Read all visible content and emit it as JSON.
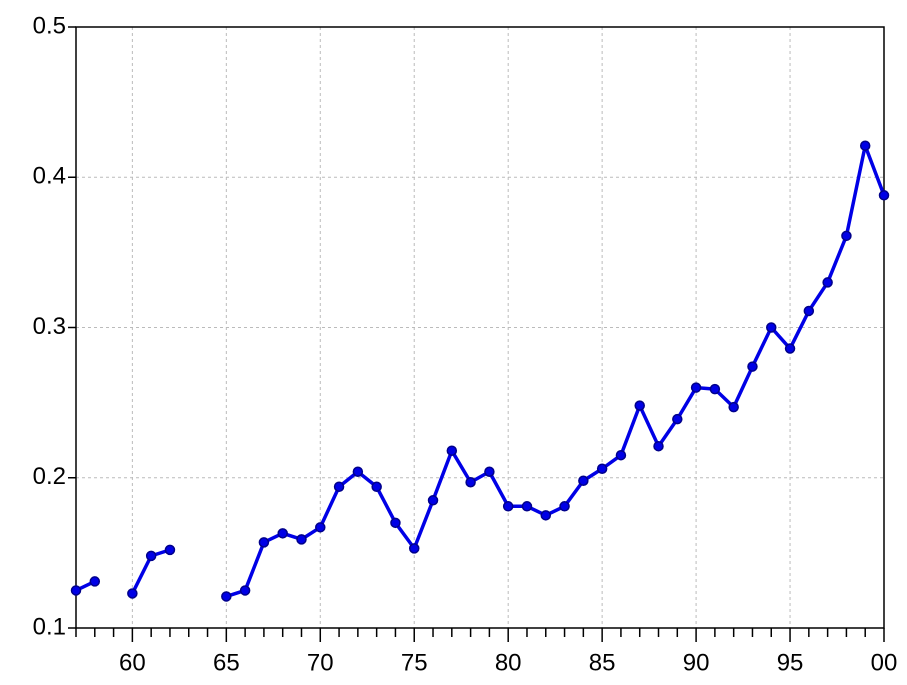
{
  "chart_data": {
    "type": "line",
    "categories": [
      null,
      null,
      null,
      "60",
      null,
      null,
      null,
      null,
      "65",
      null,
      null,
      null,
      null,
      "70",
      null,
      null,
      null,
      null,
      "75",
      null,
      null,
      null,
      null,
      "80",
      null,
      null,
      null,
      null,
      "85",
      null,
      null,
      null,
      null,
      "90",
      null,
      null,
      null,
      null,
      "95",
      null,
      null,
      null,
      null,
      "00"
    ],
    "values": [
      0.125,
      0.131,
      null,
      0.123,
      0.148,
      0.152,
      null,
      null,
      0.121,
      0.125,
      0.157,
      0.163,
      0.159,
      0.167,
      0.194,
      0.204,
      0.194,
      0.17,
      0.153,
      0.185,
      0.218,
      0.197,
      0.204,
      0.181,
      0.181,
      0.175,
      0.181,
      0.198,
      0.206,
      0.215,
      0.248,
      0.221,
      0.239,
      0.26,
      0.259,
      0.247,
      0.274,
      0.3,
      0.286,
      0.311,
      0.33,
      0.361,
      0.421,
      0.388
    ],
    "color": "#0000e6",
    "ylim": [
      0.1,
      0.5
    ],
    "yticks": [
      0.1,
      0.2,
      0.3,
      0.4,
      0.5
    ],
    "grid": true
  }
}
